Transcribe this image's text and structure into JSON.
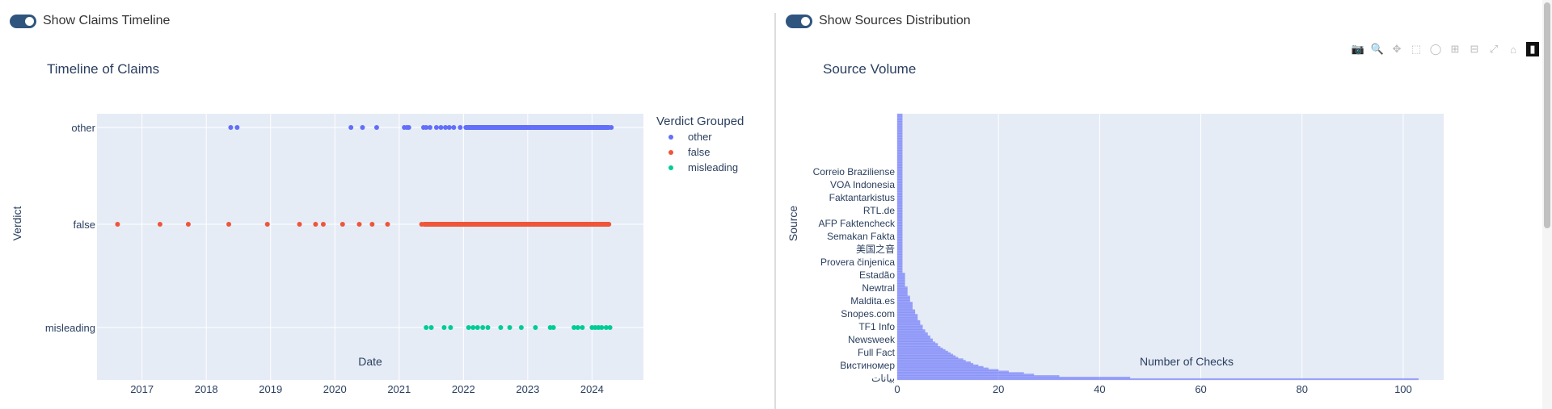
{
  "left_panel": {
    "toggle_label": "Show Claims Timeline",
    "toggle_on": true
  },
  "right_panel": {
    "toggle_label": "Show Sources Distribution",
    "toggle_on": true
  },
  "modebar": {
    "icons": [
      "camera-icon",
      "zoom-icon",
      "pan-icon",
      "box-select-icon",
      "lasso-icon",
      "zoom-in-icon",
      "zoom-out-icon",
      "autoscale-icon",
      "reset-axes-icon",
      "plotly-logo-icon"
    ],
    "active": "zoom-icon"
  },
  "chart_data": [
    {
      "type": "scatter",
      "title": "Timeline of Claims",
      "xlabel": "Date",
      "ylabel": "Verdict",
      "x_ticks": [
        "2017",
        "2018",
        "2019",
        "2020",
        "2021",
        "2022",
        "2023",
        "2024"
      ],
      "y_categories": [
        "misleading",
        "false",
        "other"
      ],
      "legend": {
        "title": "Verdict Grouped",
        "placement": "right"
      },
      "grid": true,
      "series": [
        {
          "name": "other",
          "color": "#636efa",
          "x": [
            2018.38,
            2018.48,
            2020.25,
            2020.43,
            2020.65,
            2021.08,
            2021.12,
            2021.15,
            2021.38,
            2021.42,
            2021.48,
            2021.58,
            2021.65,
            2021.72,
            2021.78,
            2021.85,
            2021.95,
            2022.05,
            2022.12,
            2022.2,
            2022.28,
            2022.36,
            2022.44,
            2022.52,
            2022.6,
            2022.68,
            2022.76,
            2022.84,
            2022.92,
            2023.0,
            2023.08,
            2023.16,
            2023.24,
            2023.32,
            2023.4,
            2023.48,
            2023.56,
            2023.64,
            2023.72,
            2023.8,
            2023.88,
            2023.96,
            2024.04,
            2024.12,
            2024.22,
            2024.3
          ]
        },
        {
          "name": "false",
          "color": "#ef553b",
          "x": [
            2016.62,
            2017.28,
            2017.72,
            2018.35,
            2018.95,
            2019.45,
            2019.7,
            2019.82,
            2020.12,
            2020.38,
            2020.58,
            2020.82,
            2021.35,
            2021.45,
            2021.55,
            2021.65,
            2021.75,
            2021.85,
            2021.95,
            2022.05,
            2022.15,
            2022.25,
            2022.35,
            2022.45,
            2022.55,
            2022.65,
            2022.75,
            2022.85,
            2022.95,
            2023.05,
            2023.15,
            2023.25,
            2023.35,
            2023.45,
            2023.55,
            2023.65,
            2023.75,
            2023.85,
            2023.95,
            2024.05,
            2024.15,
            2024.25
          ]
        },
        {
          "name": "misleading",
          "color": "#00cc96",
          "x": [
            2021.42,
            2021.5,
            2021.7,
            2021.8,
            2022.08,
            2022.15,
            2022.22,
            2022.3,
            2022.38,
            2022.58,
            2022.72,
            2022.9,
            2023.12,
            2023.35,
            2023.4,
            2023.72,
            2023.78,
            2023.85,
            2024.0,
            2024.05,
            2024.1,
            2024.15,
            2024.22,
            2024.28
          ]
        }
      ]
    },
    {
      "type": "bar",
      "orientation": "horizontal",
      "title": "Source Volume",
      "xlabel": "Number of Checks",
      "ylabel": "Source",
      "x_ticks": [
        0,
        20,
        40,
        60,
        80,
        100
      ],
      "xlim": [
        0,
        108
      ],
      "grid": true,
      "color": "#636efa",
      "labeled_categories": [
        "بيانات",
        "Вистиномер",
        "Full Fact",
        "Newsweek",
        "TF1 Info",
        "Snopes.com",
        "Maldita.es",
        "Newtral",
        "Estadão",
        "Provera činjenica",
        "美国之音",
        "Semakan Fakta",
        "AFP Faktencheck",
        "RTL.de",
        "Faktantarkistus",
        "VOA Indonesia",
        "Correio Braziliense"
      ],
      "values": [
        103,
        46,
        32,
        27,
        25,
        22,
        20,
        18,
        17,
        16,
        15,
        14.5,
        13.5,
        13,
        12,
        11.5,
        11,
        10.5,
        10,
        9.5,
        9,
        8.5,
        8,
        8,
        7.5,
        7,
        7,
        6.5,
        6.5,
        6,
        6,
        5.5,
        5.5,
        5,
        5,
        5,
        4.5,
        4.5,
        4.5,
        4,
        4,
        4,
        4,
        3.5,
        3.5,
        3.5,
        3,
        3,
        3,
        3,
        3,
        2.5,
        2.5,
        2.5,
        2.5,
        2,
        2,
        2,
        2,
        2,
        2,
        1.5,
        1.5,
        1.5,
        1.5,
        1.5,
        1.5,
        1.5,
        1.5,
        1.5,
        1,
        1,
        1,
        1,
        1,
        1,
        1,
        1,
        1,
        1,
        1,
        1,
        1,
        1,
        1,
        1,
        1,
        1,
        1,
        1,
        1,
        1,
        1,
        1,
        1,
        1,
        1,
        1,
        1,
        1,
        1,
        1,
        1,
        1,
        1,
        1,
        1,
        1,
        1,
        1,
        1,
        1,
        1,
        1,
        1,
        1,
        1,
        1,
        1,
        1,
        1,
        1,
        1,
        1,
        1,
        1,
        1,
        1,
        1,
        1,
        1,
        1,
        1,
        1,
        1,
        1,
        1,
        1,
        1,
        1,
        1,
        1,
        1,
        1,
        1,
        1,
        1,
        1,
        1,
        1,
        1,
        1,
        1,
        1,
        1,
        1,
        1,
        1,
        1,
        1,
        1,
        1,
        1,
        1,
        1,
        1,
        1,
        1,
        1,
        1,
        1,
        1,
        1,
        1
      ]
    }
  ]
}
